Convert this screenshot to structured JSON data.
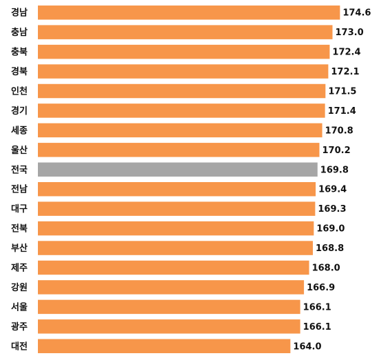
{
  "chart_data": {
    "type": "hbar",
    "categories": [
      "경남",
      "충남",
      "충북",
      "경북",
      "인천",
      "경기",
      "세종",
      "울산",
      "전국",
      "전남",
      "대구",
      "전북",
      "부산",
      "제주",
      "강원",
      "서울",
      "광주",
      "대전"
    ],
    "values": [
      174.6,
      173.0,
      172.4,
      172.1,
      171.5,
      171.4,
      170.8,
      170.2,
      169.8,
      169.4,
      169.3,
      169.0,
      168.8,
      168.0,
      166.9,
      166.1,
      166.1,
      164.0
    ],
    "value_labels": [
      "174.6",
      "173.0",
      "172.4",
      "172.1",
      "171.5",
      "171.4",
      "170.8",
      "170.2",
      "169.8",
      "169.4",
      "169.3",
      "169.0",
      "168.8",
      "168.0",
      "166.9",
      "166.1",
      "166.1",
      "164.0"
    ],
    "colors": [
      "#f7964a",
      "#f7964a",
      "#f7964a",
      "#f7964a",
      "#f7964a",
      "#f7964a",
      "#f7964a",
      "#f7964a",
      "#a6a6a6",
      "#f7964a",
      "#f7964a",
      "#f7964a",
      "#f7964a",
      "#f7964a",
      "#f7964a",
      "#f7964a",
      "#f7964a",
      "#f7964a"
    ],
    "xlim": [
      110,
      180
    ]
  }
}
